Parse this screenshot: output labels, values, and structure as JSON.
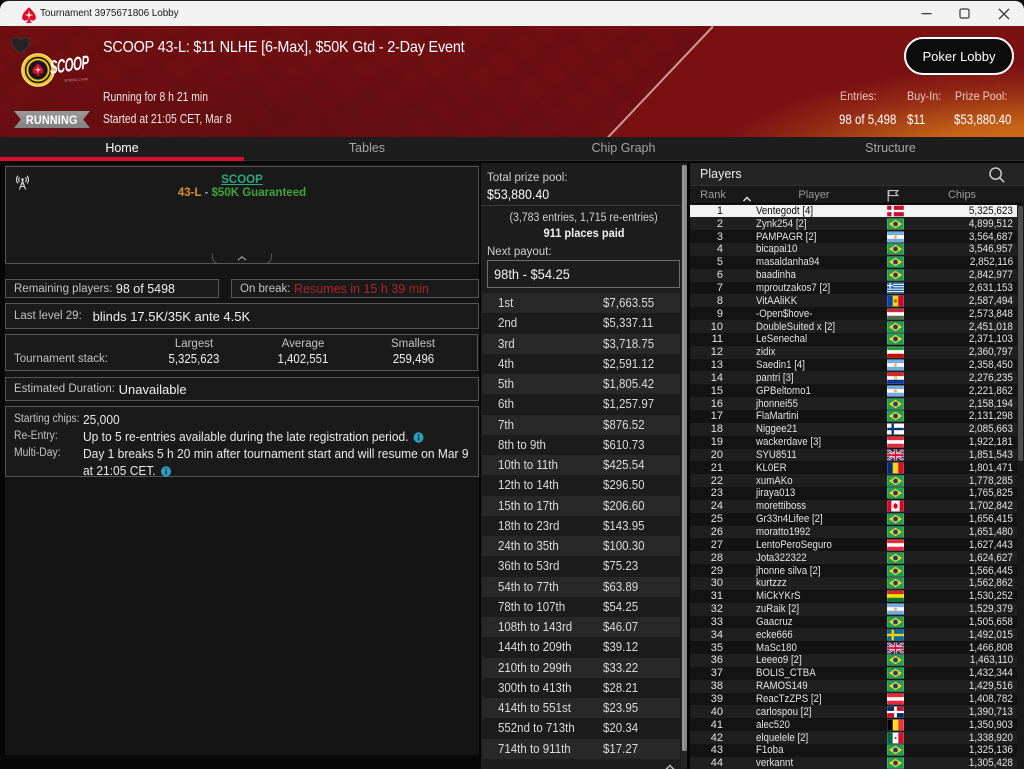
{
  "colors": {
    "brand_red": "#d80c35",
    "header_red": "#6c0f12",
    "header_orange": "#d57616",
    "link_green": "#2aa97c",
    "code_orange": "#dd8f2d",
    "guar_green": "#41a33e",
    "break_red": "#a8262c",
    "selected_row": "#f3f3f3"
  },
  "window": {
    "title": "Tournament 3975671806 Lobby",
    "controls": {
      "minimize": "minimize",
      "maximize": "maximize",
      "close": "close"
    }
  },
  "header": {
    "title": "SCOOP 43-L: $11 NLHE [6-Max], $50K Gtd - 2-Day Event",
    "logo_text": "SCOOP",
    "logo_subtext": "SPRING CHAMPIONSHIP OF ONLINE POKER",
    "running_for": "Running for 8 h 21 min",
    "status_badge": "RUNNING",
    "started_at": "Started at 21:05 CET, Mar 8",
    "poker_lobby_button": "Poker Lobby",
    "stats": [
      {
        "label": "Entries:",
        "value": "98 of 5,498"
      },
      {
        "label": "Buy-In:",
        "value": "$11"
      },
      {
        "label": "Prize Pool:",
        "value": "$53,880.40"
      }
    ]
  },
  "tabs": [
    {
      "label": "Home",
      "active": true
    },
    {
      "label": "Tables",
      "active": false
    },
    {
      "label": "Chip Graph",
      "active": false
    },
    {
      "label": "Structure",
      "active": false
    }
  ],
  "info_panel": {
    "series_link": "SCOOP",
    "series_code": "43-L",
    "series_sep": " - ",
    "series_guarantee": "$50K Guaranteed",
    "remaining_label": "Remaining players:",
    "remaining_value": "98 of 5498",
    "onbreak_label": "On break:",
    "onbreak_value": "Resumes in 15 h 39 min",
    "lastlevel_label": "Last level 29:",
    "lastlevel_value": "blinds 17.5K/35K ante 4.5K",
    "stack_label": "Tournament stack:",
    "stack_columns": [
      {
        "name": "Largest",
        "value": "5,325,623"
      },
      {
        "name": "Average",
        "value": "1,402,551"
      },
      {
        "name": "Smallest",
        "value": "259,496"
      }
    ],
    "duration_label": "Estimated Duration:",
    "duration_value": "Unavailable",
    "details": [
      {
        "label": "Starting chips:",
        "value": "25,000",
        "info": false
      },
      {
        "label": "Re-Entry:",
        "value": "Up to 5 re-entries available during the late registration period.",
        "info": true
      },
      {
        "label": "Multi-Day:",
        "value": "Day 1 breaks 5 h 20 min after tournament start and will resume on Mar 9 at 21:05 CET.",
        "info": true
      }
    ]
  },
  "payouts_panel": {
    "total_label": "Total prize pool:",
    "total_value": "$53,880.40",
    "entries_line": "(3,783 entries, 1,715 re-entries)",
    "places_paid": "911 places paid",
    "next_payout_label": "Next payout:",
    "next_payout_value": "98th - $54.25",
    "rows": [
      {
        "place": "1st",
        "amount": "$7,663.55"
      },
      {
        "place": "2nd",
        "amount": "$5,337.11"
      },
      {
        "place": "3rd",
        "amount": "$3,718.75"
      },
      {
        "place": "4th",
        "amount": "$2,591.12"
      },
      {
        "place": "5th",
        "amount": "$1,805.42"
      },
      {
        "place": "6th",
        "amount": "$1,257.97"
      },
      {
        "place": "7th",
        "amount": "$876.52"
      },
      {
        "place": "8th to 9th",
        "amount": "$610.73"
      },
      {
        "place": "10th to 11th",
        "amount": "$425.54"
      },
      {
        "place": "12th to 14th",
        "amount": "$296.50"
      },
      {
        "place": "15th to 17th",
        "amount": "$206.60"
      },
      {
        "place": "18th to 23rd",
        "amount": "$143.95"
      },
      {
        "place": "24th to 35th",
        "amount": "$100.30"
      },
      {
        "place": "36th to 53rd",
        "amount": "$75.23"
      },
      {
        "place": "54th to 77th",
        "amount": "$63.89"
      },
      {
        "place": "78th to 107th",
        "amount": "$54.25"
      },
      {
        "place": "108th to 143rd",
        "amount": "$46.07"
      },
      {
        "place": "144th to 209th",
        "amount": "$39.12"
      },
      {
        "place": "210th to 299th",
        "amount": "$33.22"
      },
      {
        "place": "300th to 413th",
        "amount": "$28.21"
      },
      {
        "place": "414th to 551st",
        "amount": "$23.95"
      },
      {
        "place": "552nd to 713th",
        "amount": "$20.34"
      },
      {
        "place": "714th to 911th",
        "amount": "$17.27"
      }
    ]
  },
  "players_panel": {
    "title": "Players",
    "col_rank": "Rank",
    "col_player": "Player",
    "col_chips": "Chips",
    "rows": [
      {
        "rank": "1",
        "name": "Ventegodt [4]",
        "country": "dk",
        "chips": "5,325,623",
        "selected": true
      },
      {
        "rank": "2",
        "name": "Zynk254 [2]",
        "country": "br",
        "chips": "4,899,512",
        "selected": false
      },
      {
        "rank": "3",
        "name": "PAMPAGR [2]",
        "country": "ar",
        "chips": "3,564,687",
        "selected": false
      },
      {
        "rank": "4",
        "name": "bicapai10",
        "country": "br",
        "chips": "3,546,957",
        "selected": false
      },
      {
        "rank": "5",
        "name": "masaldanha94",
        "country": "br",
        "chips": "2,852,116",
        "selected": false
      },
      {
        "rank": "6",
        "name": "baadinha",
        "country": "br",
        "chips": "2,842,977",
        "selected": false
      },
      {
        "rank": "7",
        "name": "mproutzakos7 [2]",
        "country": "gr",
        "chips": "2,631,153",
        "selected": false
      },
      {
        "rank": "8",
        "name": "VitAAliKK",
        "country": "md",
        "chips": "2,587,494",
        "selected": false
      },
      {
        "rank": "9",
        "name": "-Open$hove-",
        "country": "hu",
        "chips": "2,573,848",
        "selected": false
      },
      {
        "rank": "10",
        "name": "DoubleSuited x [2]",
        "country": "br",
        "chips": "2,451,018",
        "selected": false
      },
      {
        "rank": "11",
        "name": "LeSenechal",
        "country": "br",
        "chips": "2,371,103",
        "selected": false
      },
      {
        "rank": "12",
        "name": "zidix",
        "country": "ir",
        "chips": "2,360,797",
        "selected": false
      },
      {
        "rank": "13",
        "name": "Saedin1 [4]",
        "country": "ar",
        "chips": "2,358,450",
        "selected": false
      },
      {
        "rank": "14",
        "name": "pantri [3]",
        "country": "py",
        "chips": "2,276,235",
        "selected": false
      },
      {
        "rank": "15",
        "name": "GPBeltomo1",
        "country": "ar",
        "chips": "2,221,862",
        "selected": false
      },
      {
        "rank": "16",
        "name": "jhonnei55",
        "country": "br",
        "chips": "2,158,194",
        "selected": false
      },
      {
        "rank": "17",
        "name": "FlaMartini",
        "country": "br",
        "chips": "2,131,298",
        "selected": false
      },
      {
        "rank": "18",
        "name": "Niggee21",
        "country": "fi",
        "chips": "2,085,663",
        "selected": false
      },
      {
        "rank": "19",
        "name": "wackerdave [3]",
        "country": "at",
        "chips": "1,922,181",
        "selected": false
      },
      {
        "rank": "20",
        "name": "SYU8511",
        "country": "gb",
        "chips": "1,851,543",
        "selected": false
      },
      {
        "rank": "21",
        "name": "KL0ER",
        "country": "ro",
        "chips": "1,801,471",
        "selected": false
      },
      {
        "rank": "22",
        "name": "xumAKo",
        "country": "br",
        "chips": "1,778,285",
        "selected": false
      },
      {
        "rank": "23",
        "name": "jiraya013",
        "country": "br",
        "chips": "1,765,825",
        "selected": false
      },
      {
        "rank": "24",
        "name": "morettiboss",
        "country": "ca",
        "chips": "1,702,842",
        "selected": false
      },
      {
        "rank": "25",
        "name": "Gr33n4Lifee [2]",
        "country": "br",
        "chips": "1,656,415",
        "selected": false
      },
      {
        "rank": "26",
        "name": "moratto1992",
        "country": "br",
        "chips": "1,651,480",
        "selected": false
      },
      {
        "rank": "27",
        "name": "LentoPeroSeguro",
        "country": "at",
        "chips": "1,627,443",
        "selected": false
      },
      {
        "rank": "28",
        "name": "Jota322322",
        "country": "br",
        "chips": "1,624,627",
        "selected": false
      },
      {
        "rank": "29",
        "name": "jhonne silva [2]",
        "country": "br",
        "chips": "1,566,445",
        "selected": false
      },
      {
        "rank": "30",
        "name": "kurtzzz",
        "country": "br",
        "chips": "1,562,862",
        "selected": false
      },
      {
        "rank": "31",
        "name": "MiCkYKrS",
        "country": "bo",
        "chips": "1,530,252",
        "selected": false
      },
      {
        "rank": "32",
        "name": "zuRaik [2]",
        "country": "ar",
        "chips": "1,529,379",
        "selected": false
      },
      {
        "rank": "33",
        "name": "Gaacruz",
        "country": "br",
        "chips": "1,505,658",
        "selected": false
      },
      {
        "rank": "34",
        "name": "ecke666",
        "country": "se",
        "chips": "1,492,015",
        "selected": false
      },
      {
        "rank": "35",
        "name": "MaSc180",
        "country": "gb",
        "chips": "1,466,808",
        "selected": false
      },
      {
        "rank": "36",
        "name": "Leeeo9 [2]",
        "country": "br",
        "chips": "1,463,110",
        "selected": false
      },
      {
        "rank": "37",
        "name": "BOLIS_CTBA",
        "country": "br",
        "chips": "1,432,344",
        "selected": false
      },
      {
        "rank": "38",
        "name": "RAMOS149",
        "country": "br",
        "chips": "1,429,516",
        "selected": false
      },
      {
        "rank": "39",
        "name": "ReacTzZPS [2]",
        "country": "at",
        "chips": "1,408,782",
        "selected": false
      },
      {
        "rank": "40",
        "name": "carlospou [2]",
        "country": "do",
        "chips": "1,390,713",
        "selected": false
      },
      {
        "rank": "41",
        "name": "alec520",
        "country": "be",
        "chips": "1,350,903",
        "selected": false
      },
      {
        "rank": "42",
        "name": "elquelele [2]",
        "country": "mx",
        "chips": "1,338,920",
        "selected": false
      },
      {
        "rank": "43",
        "name": "F1oba",
        "country": "br",
        "chips": "1,325,136",
        "selected": false
      },
      {
        "rank": "44",
        "name": "verkannt",
        "country": "br",
        "chips": "1,305,428",
        "selected": false
      }
    ]
  }
}
